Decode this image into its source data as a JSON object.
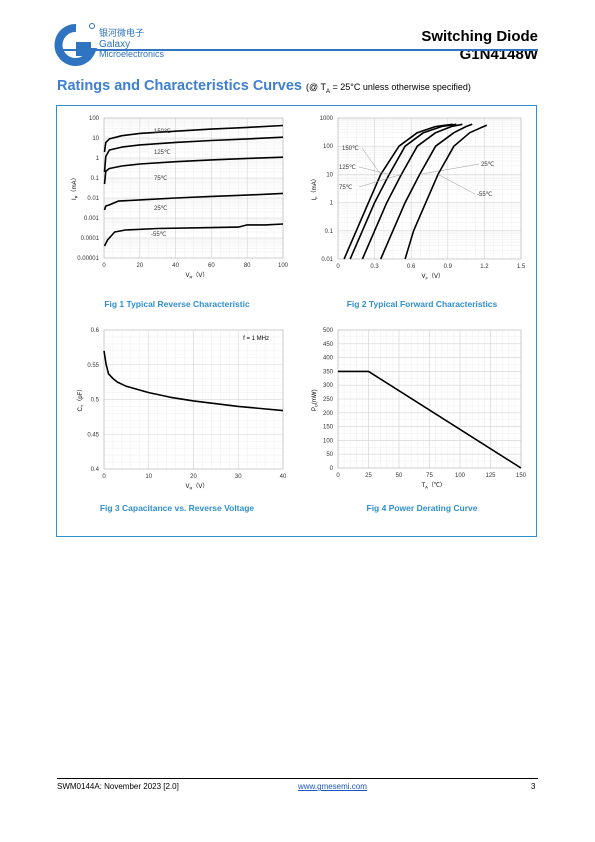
{
  "header": {
    "logo_cn": "银河微电子",
    "logo_line1": "Galaxy",
    "logo_line2": "Microelectronics",
    "title": "Switching Diode",
    "part_number": "G1N4148W"
  },
  "section": {
    "heading": "Ratings and Characteristics Curves",
    "condition_prefix": "(@ T",
    "condition_sub": "A",
    "condition_suffix": " = 25°C unless otherwise specified)"
  },
  "figures": [
    {
      "caption": "Fig 1    Typical Reverse Characteristic"
    },
    {
      "caption": "Fig 2    Typical Forward Characteristics"
    },
    {
      "caption": "Fig 3    Capacitance vs. Reverse Voltage"
    },
    {
      "caption": "Fig 4    Power Derating Curve"
    }
  ],
  "chart_data": [
    {
      "type": "line",
      "xlabel": "V",
      "xlabel_sub": "R",
      "xlabel_unit": "（V）",
      "ylabel": "I",
      "ylabel_sub": "R",
      "ylabel_unit": "（mA）",
      "xlim": [
        0,
        100
      ],
      "ylim_log": [
        1e-05,
        100
      ],
      "x_ticks": [
        "0",
        "20",
        "40",
        "60",
        "80",
        "100"
      ],
      "y_ticks": [
        "0.00001",
        "0.0001",
        "0.001",
        "0.01",
        "0.1",
        "1",
        "10",
        "100"
      ],
      "scale": "log-y",
      "grid": true,
      "series": [
        {
          "name": "150℃",
          "points": [
            [
              0.3,
              2
            ],
            [
              1,
              6
            ],
            [
              3,
              9
            ],
            [
              10,
              13
            ],
            [
              20,
              17
            ],
            [
              40,
              22
            ],
            [
              60,
              28
            ],
            [
              80,
              34
            ],
            [
              100,
              42
            ]
          ]
        },
        {
          "name": "125℃",
          "points": [
            [
              0.3,
              0.2
            ],
            [
              1,
              1.2
            ],
            [
              3,
              2.5
            ],
            [
              10,
              3.5
            ],
            [
              20,
              4.5
            ],
            [
              40,
              6
            ],
            [
              60,
              7.5
            ],
            [
              80,
              9
            ],
            [
              100,
              11
            ]
          ]
        },
        {
          "name": "75℃",
          "points": [
            [
              0.3,
              0.05
            ],
            [
              1,
              0.22
            ],
            [
              3,
              0.3
            ],
            [
              10,
              0.4
            ],
            [
              20,
              0.5
            ],
            [
              40,
              0.65
            ],
            [
              60,
              0.8
            ],
            [
              80,
              0.95
            ],
            [
              100,
              1.1
            ]
          ]
        },
        {
          "name": "25℃",
          "points": [
            [
              0.3,
              0.0025
            ],
            [
              1,
              0.004
            ],
            [
              3,
              0.0045
            ],
            [
              8,
              0.007
            ],
            [
              20,
              0.008
            ],
            [
              40,
              0.01
            ],
            [
              60,
              0.012
            ],
            [
              80,
              0.014
            ],
            [
              100,
              0.017
            ]
          ]
        },
        {
          "name": "-55℃",
          "points": [
            [
              0.3,
              4e-05
            ],
            [
              2,
              8e-05
            ],
            [
              6,
              0.0002
            ],
            [
              12,
              0.00025
            ],
            [
              30,
              0.0003
            ],
            [
              60,
              0.00033
            ],
            [
              75,
              0.00035
            ],
            [
              80,
              0.00045
            ],
            [
              90,
              0.00045
            ],
            [
              100,
              0.0005
            ]
          ]
        }
      ]
    },
    {
      "type": "line",
      "xlabel": "V",
      "xlabel_sub": "F",
      "xlabel_unit": "（V）",
      "ylabel": "I",
      "ylabel_sub": "F",
      "ylabel_unit": "（mA）",
      "xlim": [
        0,
        1.5
      ],
      "ylim_log": [
        0.01,
        1000
      ],
      "x_ticks": [
        "0",
        "0.3",
        "0.6",
        "0.9",
        "1.2",
        "1.5"
      ],
      "y_ticks": [
        "0.01",
        "0.1",
        "1",
        "10",
        "100",
        "1000"
      ],
      "scale": "log-y",
      "grid": true,
      "series": [
        {
          "name": "150℃",
          "points": [
            [
              0.05,
              0.01
            ],
            [
              0.15,
              0.1
            ],
            [
              0.25,
              1
            ],
            [
              0.35,
              10
            ],
            [
              0.5,
              100
            ],
            [
              0.65,
              300
            ],
            [
              0.8,
              500
            ],
            [
              0.94,
              600
            ]
          ]
        },
        {
          "name": "125℃",
          "points": [
            [
              0.1,
              0.01
            ],
            [
              0.2,
              0.1
            ],
            [
              0.3,
              1
            ],
            [
              0.42,
              10
            ],
            [
              0.55,
              100
            ],
            [
              0.7,
              300
            ],
            [
              0.85,
              500
            ],
            [
              0.97,
              600
            ]
          ]
        },
        {
          "name": "75℃",
          "points": [
            [
              0.2,
              0.01
            ],
            [
              0.3,
              0.1
            ],
            [
              0.4,
              1
            ],
            [
              0.52,
              10
            ],
            [
              0.65,
              100
            ],
            [
              0.8,
              300
            ],
            [
              0.93,
              500
            ],
            [
              1.02,
              600
            ]
          ]
        },
        {
          "name": "25℃",
          "points": [
            [
              0.35,
              0.01
            ],
            [
              0.45,
              0.1
            ],
            [
              0.55,
              1
            ],
            [
              0.67,
              10
            ],
            [
              0.8,
              100
            ],
            [
              0.95,
              300
            ],
            [
              1.05,
              500
            ],
            [
              1.1,
              600
            ]
          ]
        },
        {
          "name": "-55℃",
          "points": [
            [
              0.55,
              0.01
            ],
            [
              0.62,
              0.1
            ],
            [
              0.72,
              1
            ],
            [
              0.82,
              10
            ],
            [
              0.95,
              100
            ],
            [
              1.08,
              300
            ],
            [
              1.17,
              450
            ],
            [
              1.22,
              550
            ]
          ]
        }
      ]
    },
    {
      "type": "line",
      "xlabel": "V",
      "xlabel_sub": "R",
      "xlabel_unit": "（V）",
      "ylabel": "C",
      "ylabel_sub": "T",
      "ylabel_unit": "（pF）",
      "xlim": [
        0,
        40
      ],
      "ylim": [
        0.4,
        0.6
      ],
      "x_ticks": [
        "0",
        "10",
        "20",
        "30",
        "40"
      ],
      "y_ticks": [
        "0.4",
        "0.45",
        "0.5",
        "0.55",
        "0.6"
      ],
      "grid": true,
      "annotation": "f = 1 MHz",
      "series": [
        {
          "points": [
            [
              0,
              0.57
            ],
            [
              0.5,
              0.55
            ],
            [
              1,
              0.537
            ],
            [
              2,
              0.53
            ],
            [
              3,
              0.525
            ],
            [
              5,
              0.519
            ],
            [
              10,
              0.51
            ],
            [
              15,
              0.503
            ],
            [
              20,
              0.498
            ],
            [
              25,
              0.494
            ],
            [
              30,
              0.49
            ],
            [
              35,
              0.487
            ],
            [
              40,
              0.484
            ]
          ]
        }
      ]
    },
    {
      "type": "line",
      "xlabel": "T",
      "xlabel_sub": "A",
      "xlabel_unit": "（℃）",
      "ylabel": "P",
      "ylabel_sub": "D",
      "ylabel_unit": "(mW)",
      "xlim": [
        0,
        150
      ],
      "ylim": [
        0,
        500
      ],
      "x_ticks": [
        "0",
        "25",
        "50",
        "75",
        "100",
        "125",
        "150"
      ],
      "y_ticks": [
        "0",
        "50",
        "100",
        "150",
        "200",
        "250",
        "300",
        "350",
        "400",
        "450",
        "500"
      ],
      "grid": true,
      "series": [
        {
          "points": [
            [
              0,
              350
            ],
            [
              25,
              350
            ],
            [
              150,
              0
            ]
          ]
        }
      ]
    }
  ],
  "footer": {
    "doc_code": "SWM0144A: November 2023 [2.0]",
    "website": "www.gmesemi.com",
    "page": "3"
  },
  "theme": {
    "accent": "#2f8fd0",
    "heading": "#3d7fd0",
    "logo": "#2f74c0"
  }
}
